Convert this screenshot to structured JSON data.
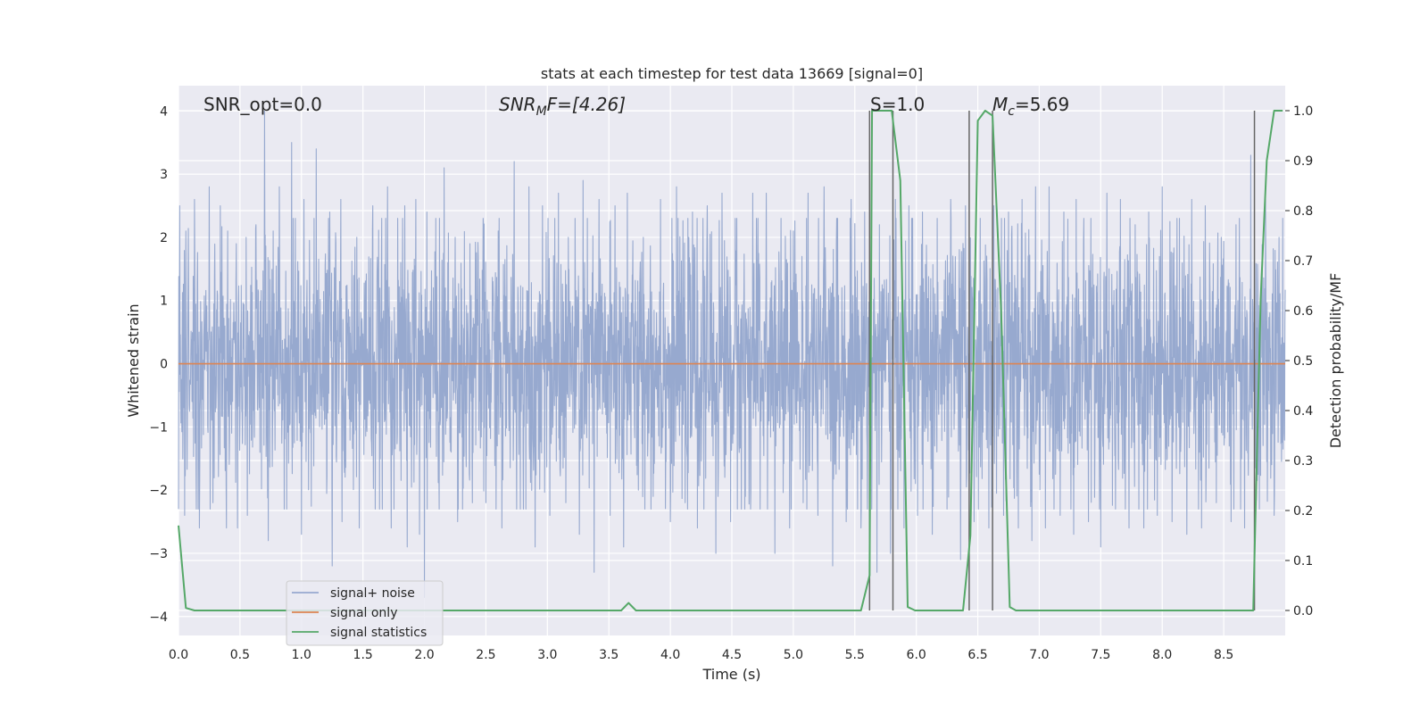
{
  "chart_data": {
    "type": "line",
    "title": "stats at each timestep for test data 13669 [signal=0]",
    "xlabel": "Time (s)",
    "ylabel_left": "Whitened strain",
    "ylabel_right": "Detection probability/MF",
    "xlim": [
      0.0,
      9.0
    ],
    "ylim_left": [
      -4.3,
      4.4
    ],
    "ylim_right": [
      -0.05,
      1.05
    ],
    "x_ticks": [
      "0.0",
      "0.5",
      "1.0",
      "1.5",
      "2.0",
      "2.5",
      "3.0",
      "3.5",
      "4.0",
      "4.5",
      "5.0",
      "5.5",
      "6.0",
      "6.5",
      "7.0",
      "7.5",
      "8.0",
      "8.5"
    ],
    "x_tick_values": [
      0.0,
      0.5,
      1.0,
      1.5,
      2.0,
      2.5,
      3.0,
      3.5,
      4.0,
      4.5,
      5.0,
      5.5,
      6.0,
      6.5,
      7.0,
      7.5,
      8.0,
      8.5
    ],
    "y_ticks_left": [
      "−4",
      "−3",
      "−2",
      "−1",
      "0",
      "1",
      "2",
      "3",
      "4"
    ],
    "y_tick_values_left": [
      -4,
      -3,
      -2,
      -1,
      0,
      1,
      2,
      3,
      4
    ],
    "y_ticks_right": [
      "0.0",
      "0.1",
      "0.2",
      "0.3",
      "0.4",
      "0.5",
      "0.6",
      "0.7",
      "0.8",
      "0.9",
      "1.0"
    ],
    "y_tick_values_right": [
      0.0,
      0.1,
      0.2,
      0.3,
      0.4,
      0.5,
      0.6,
      0.7,
      0.8,
      0.9,
      1.0
    ],
    "grid": true,
    "legend_position": "lower-left",
    "annotations": {
      "snr_opt": "SNR_opt=0.0",
      "snr_mf_main": "SNR",
      "snr_mf_sub": "M",
      "snr_mf_rest": "F=[4.26]",
      "s_label": "S=1.0",
      "mc_main": "M",
      "mc_sub": "c",
      "mc_rest": "=5.69"
    },
    "series": [
      {
        "name": "signal+ noise",
        "color": "#97a9cf",
        "description_note": "",
        "sample_rate": 400,
        "noise_std": 1.0,
        "spike_points": [
          [
            0.01,
            2.5
          ],
          [
            0.06,
            2.1
          ],
          [
            0.13,
            2.6
          ],
          [
            0.25,
            2.8
          ],
          [
            0.34,
            2.5
          ],
          [
            0.4,
            2.1
          ],
          [
            0.47,
            1.9
          ],
          [
            0.55,
            2.0
          ],
          [
            0.63,
            2.2
          ],
          [
            0.7,
            4.0
          ],
          [
            0.77,
            2.1
          ],
          [
            0.82,
            2.8
          ],
          [
            0.92,
            3.5
          ],
          [
            1.02,
            2.6
          ],
          [
            1.12,
            3.4
          ],
          [
            1.23,
            2.4
          ],
          [
            1.32,
            2.6
          ],
          [
            1.45,
            2.0
          ],
          [
            1.58,
            2.5
          ],
          [
            1.7,
            2.8
          ],
          [
            1.84,
            2.5
          ],
          [
            1.93,
            2.6
          ],
          [
            2.02,
            2.4
          ],
          [
            2.16,
            3.1
          ],
          [
            2.25,
            2.0
          ],
          [
            2.37,
            1.9
          ],
          [
            2.48,
            2.2
          ],
          [
            2.6,
            2.1
          ],
          [
            2.73,
            3.2
          ],
          [
            2.85,
            2.8
          ],
          [
            2.96,
            2.5
          ],
          [
            3.09,
            2.7
          ],
          [
            3.17,
            2.0
          ],
          [
            3.29,
            2.9
          ],
          [
            3.42,
            2.6
          ],
          [
            3.55,
            2.5
          ],
          [
            3.65,
            2.7
          ],
          [
            3.78,
            2.0
          ],
          [
            3.92,
            2.6
          ],
          [
            4.05,
            2.8
          ],
          [
            4.18,
            2.4
          ],
          [
            4.3,
            2.5
          ],
          [
            4.42,
            2.7
          ],
          [
            4.54,
            2.3
          ],
          [
            4.67,
            2.7
          ],
          [
            4.78,
            2.7
          ],
          [
            4.9,
            2.3
          ],
          [
            5.0,
            2.1
          ],
          [
            5.12,
            2.7
          ],
          [
            5.25,
            2.8
          ],
          [
            5.36,
            2.3
          ],
          [
            5.47,
            2.6
          ],
          [
            5.58,
            2.4
          ],
          [
            5.7,
            2.2
          ],
          [
            5.83,
            2.6
          ],
          [
            5.94,
            2.5
          ],
          [
            6.05,
            2.4
          ],
          [
            6.17,
            2.3
          ],
          [
            6.28,
            2.6
          ],
          [
            6.4,
            2.5
          ],
          [
            6.52,
            2.3
          ],
          [
            6.63,
            2.5
          ],
          [
            6.75,
            2.4
          ],
          [
            6.86,
            2.6
          ],
          [
            6.97,
            2.8
          ],
          [
            7.08,
            2.8
          ],
          [
            7.2,
            2.4
          ],
          [
            7.3,
            2.6
          ],
          [
            7.42,
            2.3
          ],
          [
            7.55,
            2.7
          ],
          [
            7.66,
            2.6
          ],
          [
            7.78,
            2.2
          ],
          [
            7.89,
            2.4
          ],
          [
            8.0,
            2.8
          ],
          [
            8.12,
            2.3
          ],
          [
            8.24,
            2.6
          ],
          [
            8.35,
            2.5
          ],
          [
            8.48,
            2.0
          ],
          [
            8.6,
            2.2
          ],
          [
            8.72,
            3.3
          ],
          [
            8.84,
            2.6
          ],
          [
            8.95,
            2.0
          ],
          [
            0.05,
            -2.4
          ],
          [
            0.17,
            -2.6
          ],
          [
            0.28,
            -2.2
          ],
          [
            0.39,
            -2.6
          ],
          [
            0.48,
            -2.6
          ],
          [
            0.56,
            -2.4
          ],
          [
            0.73,
            -2.8
          ],
          [
            0.86,
            -2.3
          ],
          [
            1.0,
            -2.7
          ],
          [
            1.25,
            -3.2
          ],
          [
            1.33,
            -2.5
          ],
          [
            1.47,
            -2.6
          ],
          [
            1.6,
            -2.3
          ],
          [
            1.73,
            -2.6
          ],
          [
            1.86,
            -2.9
          ],
          [
            1.96,
            -2.7
          ],
          [
            2.0,
            -3.7
          ],
          [
            2.12,
            -2.3
          ],
          [
            2.27,
            -2.5
          ],
          [
            2.39,
            -2.2
          ],
          [
            2.5,
            -2.2
          ],
          [
            2.63,
            -2.6
          ],
          [
            2.78,
            -2.3
          ],
          [
            2.9,
            -2.9
          ],
          [
            3.02,
            -2.4
          ],
          [
            3.15,
            -2.2
          ],
          [
            3.26,
            -2.7
          ],
          [
            3.38,
            -3.3
          ],
          [
            3.51,
            -2.4
          ],
          [
            3.62,
            -2.9
          ],
          [
            3.74,
            -2.0
          ],
          [
            3.86,
            -2.1
          ],
          [
            4.0,
            -2.5
          ],
          [
            4.12,
            -2.2
          ],
          [
            4.22,
            -2.6
          ],
          [
            4.37,
            -3.0
          ],
          [
            4.49,
            -2.5
          ],
          [
            4.61,
            -2.1
          ],
          [
            4.73,
            -2.3
          ],
          [
            4.85,
            -3.0
          ],
          [
            4.97,
            -2.6
          ],
          [
            5.08,
            -2.2
          ],
          [
            5.2,
            -2.4
          ],
          [
            5.32,
            -3.2
          ],
          [
            5.43,
            -2.5
          ],
          [
            5.55,
            -2.6
          ],
          [
            5.68,
            -3.3
          ],
          [
            5.79,
            -3.0
          ],
          [
            5.9,
            -2.6
          ],
          [
            6.01,
            -2.4
          ],
          [
            6.13,
            -2.7
          ],
          [
            6.25,
            -2.3
          ],
          [
            6.36,
            -3.1
          ],
          [
            6.47,
            -2.5
          ],
          [
            6.59,
            -2.6
          ],
          [
            6.71,
            -2.4
          ],
          [
            6.83,
            -2.6
          ],
          [
            6.94,
            -2.8
          ],
          [
            7.05,
            -2.6
          ],
          [
            7.17,
            -2.4
          ],
          [
            7.28,
            -2.7
          ],
          [
            7.4,
            -2.5
          ],
          [
            7.5,
            -2.9
          ],
          [
            7.62,
            -2.3
          ],
          [
            7.73,
            -2.6
          ],
          [
            7.85,
            -2.6
          ],
          [
            7.96,
            -2.4
          ],
          [
            8.08,
            -2.5
          ],
          [
            8.2,
            -2.7
          ],
          [
            8.32,
            -2.6
          ],
          [
            8.44,
            -2.2
          ],
          [
            8.56,
            -2.5
          ],
          [
            8.67,
            -2.6
          ],
          [
            8.79,
            -2.3
          ],
          [
            8.91,
            -2.4
          ]
        ]
      },
      {
        "name": "signal only",
        "color": "#dd8452",
        "x": [
          0.0,
          9.0
        ],
        "y": [
          0.0,
          0.0
        ]
      },
      {
        "name": "signal statistics",
        "color": "#55a868",
        "axis": "right",
        "x": [
          0.0,
          0.06,
          0.13,
          3.6,
          3.66,
          3.72,
          5.55,
          5.62,
          5.64,
          5.69,
          5.8,
          5.87,
          5.93,
          5.99,
          6.06,
          6.38,
          6.44,
          6.5,
          6.56,
          6.62,
          6.69,
          6.76,
          6.81,
          8.74,
          8.8,
          8.85,
          8.91,
          8.98
        ],
        "y": [
          0.17,
          0.005,
          0.0,
          0.0,
          0.015,
          0.0,
          0.0,
          0.07,
          1.0,
          1.0,
          1.0,
          0.86,
          0.007,
          0.0,
          0.0,
          0.0,
          0.15,
          0.98,
          1.0,
          0.99,
          0.6,
          0.007,
          0.0,
          0.0,
          0.62,
          0.9,
          1.0,
          1.0
        ]
      }
    ],
    "vlines": {
      "color": "#666666",
      "x": [
        5.62,
        5.81,
        6.43,
        6.62,
        8.75
      ],
      "ymin_right": 0.0,
      "ymax_right": 1.0
    }
  }
}
